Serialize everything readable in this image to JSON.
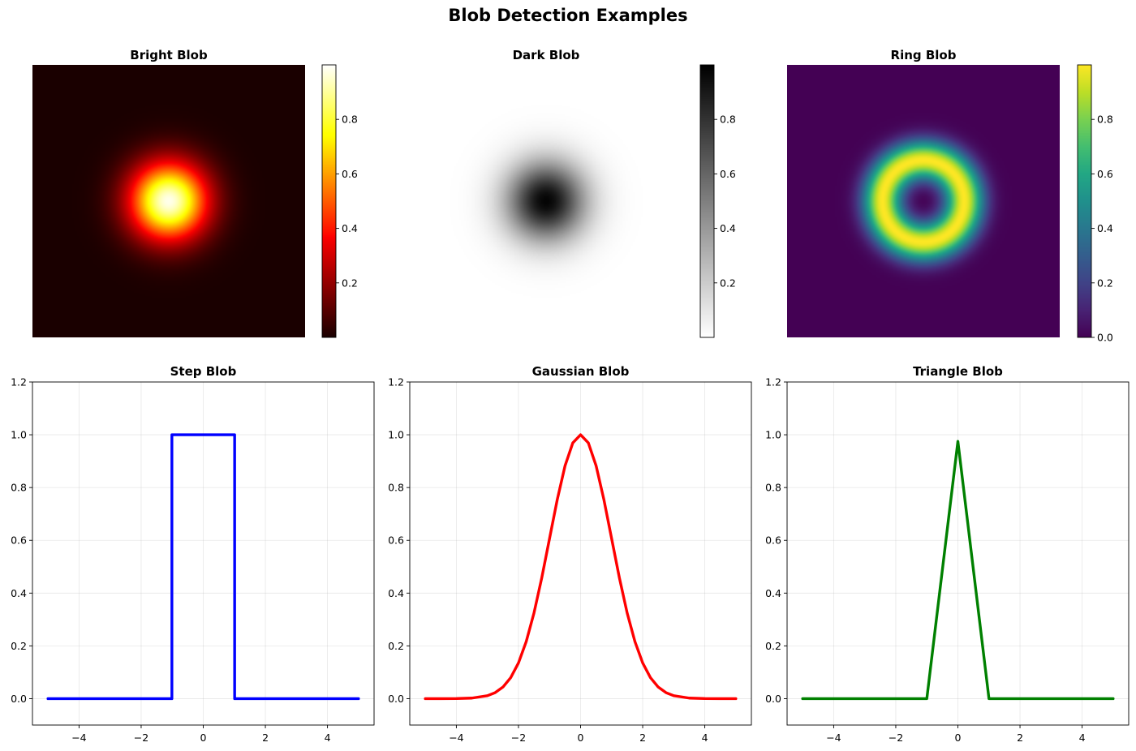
{
  "figure": {
    "title": "Blob Detection Examples"
  },
  "chart_data": [
    {
      "type": "heatmap",
      "title": "Bright Blob",
      "colormap": "hot",
      "pattern": "gaussian",
      "center": [
        0,
        0
      ],
      "sigma": 1.0,
      "extent": [
        -5,
        5
      ],
      "colorbar": {
        "range": [
          0,
          1
        ],
        "ticks": [
          0.2,
          0.4,
          0.6,
          0.8
        ],
        "tick_labels": [
          "0.2",
          "0.4",
          "0.6",
          "0.8"
        ]
      }
    },
    {
      "type": "heatmap",
      "title": "Dark Blob",
      "colormap": "gray_r",
      "pattern": "gaussian",
      "center": [
        0,
        0
      ],
      "sigma": 1.0,
      "extent": [
        -5,
        5
      ],
      "colorbar": {
        "range": [
          0,
          1
        ],
        "ticks": [
          0.2,
          0.4,
          0.6,
          0.8
        ],
        "tick_labels": [
          "0.2",
          "0.4",
          "0.6",
          "0.8"
        ]
      }
    },
    {
      "type": "heatmap",
      "title": "Ring Blob",
      "colormap": "viridis",
      "pattern": "ring",
      "center": [
        0,
        0
      ],
      "ring_radius": 1.5,
      "ring_width": 0.5,
      "cutoff_radius": 3.3,
      "extent": [
        -5,
        5
      ],
      "colorbar": {
        "range": [
          0,
          1
        ],
        "ticks": [
          0.0,
          0.2,
          0.4,
          0.6,
          0.8
        ],
        "tick_labels": [
          "0.0",
          "0.2",
          "0.4",
          "0.6",
          "0.8"
        ]
      }
    },
    {
      "type": "line",
      "title": "Step Blob",
      "color": "#0000ff",
      "x": [
        -5,
        -1.01,
        -1.01,
        1.01,
        1.01,
        5
      ],
      "y": [
        0,
        0,
        1,
        1,
        0,
        0
      ],
      "xlim": [
        -5.5,
        5.5
      ],
      "ylim": [
        -0.1,
        1.2
      ],
      "xticks": [
        -4,
        -2,
        0,
        2,
        4
      ],
      "xtick_labels": [
        "−4",
        "−2",
        "0",
        "2",
        "4"
      ],
      "yticks": [
        0.0,
        0.2,
        0.4,
        0.6,
        0.8,
        1.0,
        1.2
      ],
      "ytick_labels": [
        "0.0",
        "0.2",
        "0.4",
        "0.6",
        "0.8",
        "1.0",
        "1.2"
      ],
      "grid": true
    },
    {
      "type": "line",
      "title": "Gaussian Blob",
      "color": "#ff0000",
      "x": [
        -5,
        -4.5,
        -4,
        -3.5,
        -3,
        -2.75,
        -2.5,
        -2.25,
        -2,
        -1.75,
        -1.5,
        -1.25,
        -1,
        -0.75,
        -0.5,
        -0.25,
        0,
        0.25,
        0.5,
        0.75,
        1,
        1.25,
        1.5,
        1.75,
        2,
        2.25,
        2.5,
        2.75,
        3,
        3.5,
        4,
        4.5,
        5
      ],
      "y": [
        0.0,
        0.0,
        0.0003,
        0.0022,
        0.0111,
        0.0228,
        0.0439,
        0.0796,
        0.1353,
        0.2163,
        0.3247,
        0.4578,
        0.6065,
        0.7548,
        0.8825,
        0.9692,
        1.0,
        0.9692,
        0.8825,
        0.7548,
        0.6065,
        0.4578,
        0.3247,
        0.2163,
        0.1353,
        0.0796,
        0.0439,
        0.0228,
        0.0111,
        0.0022,
        0.0003,
        0.0,
        0.0
      ],
      "xlim": [
        -5.5,
        5.5
      ],
      "ylim": [
        -0.1,
        1.2
      ],
      "xticks": [
        -4,
        -2,
        0,
        2,
        4
      ],
      "xtick_labels": [
        "−4",
        "−2",
        "0",
        "2",
        "4"
      ],
      "yticks": [
        0.0,
        0.2,
        0.4,
        0.6,
        0.8,
        1.0,
        1.2
      ],
      "ytick_labels": [
        "0.0",
        "0.2",
        "0.4",
        "0.6",
        "0.8",
        "1.0",
        "1.2"
      ],
      "grid": true
    },
    {
      "type": "line",
      "title": "Triangle Blob",
      "color": "#008000",
      "x": [
        -5,
        -1.0,
        -0.97,
        0,
        0.97,
        1.0,
        5
      ],
      "y": [
        0,
        0,
        0.03,
        0.975,
        0.03,
        0,
        0
      ],
      "xlim": [
        -5.5,
        5.5
      ],
      "ylim": [
        -0.1,
        1.2
      ],
      "xticks": [
        -4,
        -2,
        0,
        2,
        4
      ],
      "xtick_labels": [
        "−4",
        "−2",
        "0",
        "2",
        "4"
      ],
      "yticks": [
        0.0,
        0.2,
        0.4,
        0.6,
        0.8,
        1.0,
        1.2
      ],
      "ytick_labels": [
        "0.0",
        "0.2",
        "0.4",
        "0.6",
        "0.8",
        "1.0",
        "1.2"
      ],
      "grid": true
    }
  ]
}
